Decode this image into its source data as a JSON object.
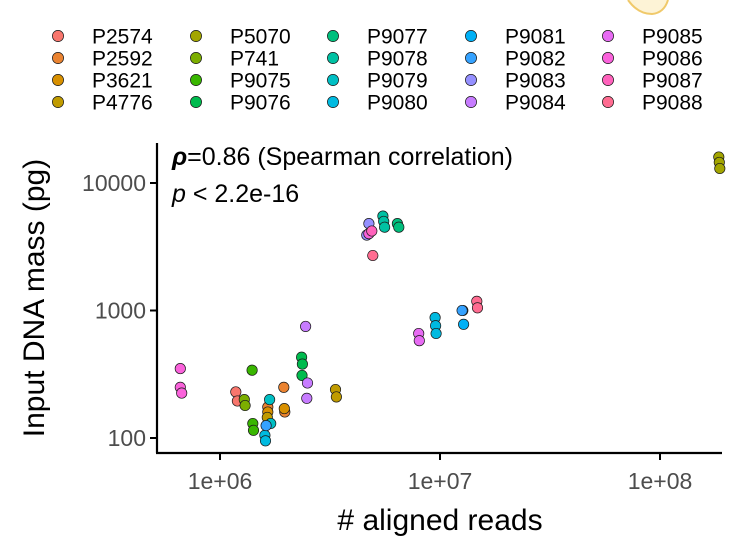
{
  "chart_data": {
    "type": "scatter",
    "xlabel": "# aligned reads",
    "ylabel": "Input DNA mass (pg)",
    "x_scale": "log10",
    "y_scale": "log10",
    "xlim": [
      500000,
      230000000
    ],
    "ylim": [
      85,
      20000
    ],
    "x_ticks": [
      {
        "value": 1000000,
        "label": "1e+06"
      },
      {
        "value": 10000000,
        "label": "1e+07"
      },
      {
        "value": 100000000,
        "label": "1e+08"
      }
    ],
    "y_ticks": [
      {
        "value": 100,
        "label": "100"
      },
      {
        "value": 1000,
        "label": "1000"
      },
      {
        "value": 10000,
        "label": "10000"
      }
    ],
    "annotations": {
      "rho_symbol": "ρ",
      "rho_text": "=0.86 (Spearman correlation)",
      "p_symbol": "p",
      "p_text": " < 2.2e-16"
    },
    "grid": false,
    "legend_position": "top",
    "series": [
      {
        "name": "P2574",
        "color": "#F8766D",
        "points": [
          [
            1180000,
            230
          ],
          [
            1200000,
            195
          ]
        ]
      },
      {
        "name": "P2592",
        "color": "#EA8331",
        "points": [
          [
            1650000,
            175
          ],
          [
            1950000,
            250
          ],
          [
            1970000,
            160
          ]
        ]
      },
      {
        "name": "P3621",
        "color": "#D89000",
        "points": [
          [
            1650000,
            160
          ],
          [
            1960000,
            170
          ]
        ]
      },
      {
        "name": "P4776",
        "color": "#C09B00",
        "points": [
          [
            1640000,
            145
          ],
          [
            3350000,
            240
          ],
          [
            3380000,
            210
          ]
        ]
      },
      {
        "name": "P5070",
        "color": "#A3A500",
        "points": [
          [
            185000000,
            16000
          ],
          [
            186000000,
            14500
          ],
          [
            187000000,
            13000
          ]
        ]
      },
      {
        "name": "P741",
        "color": "#7CAE00",
        "points": [
          [
            1290000,
            200
          ],
          [
            1300000,
            180
          ]
        ]
      },
      {
        "name": "P9075",
        "color": "#39B600",
        "points": [
          [
            1400000,
            340
          ],
          [
            1410000,
            130
          ],
          [
            1420000,
            115
          ]
        ]
      },
      {
        "name": "P9076",
        "color": "#00BB4E",
        "points": [
          [
            2350000,
            430
          ],
          [
            2370000,
            380
          ],
          [
            2360000,
            310
          ]
        ]
      },
      {
        "name": "P9077",
        "color": "#00BF7D",
        "points": [
          [
            6400000,
            4800
          ],
          [
            6500000,
            4500
          ]
        ]
      },
      {
        "name": "P9078",
        "color": "#00C1A3",
        "points": [
          [
            5500000,
            5500
          ],
          [
            5550000,
            5000
          ],
          [
            5600000,
            4500
          ]
        ]
      },
      {
        "name": "P9079",
        "color": "#00BFC4",
        "points": [
          [
            1680000,
            200
          ],
          [
            1700000,
            130
          ]
        ]
      },
      {
        "name": "P9080",
        "color": "#00BAE0",
        "points": [
          [
            1600000,
            105
          ],
          [
            1610000,
            95
          ],
          [
            9500000,
            880
          ],
          [
            9550000,
            760
          ],
          [
            9600000,
            660
          ]
        ]
      },
      {
        "name": "P9081",
        "color": "#00B0F6",
        "points": [
          [
            12700000,
            1000
          ],
          [
            12800000,
            780
          ]
        ]
      },
      {
        "name": "P9082",
        "color": "#35A2FF",
        "points": [
          [
            1620000,
            125
          ],
          [
            12600000,
            1000
          ]
        ]
      },
      {
        "name": "P9083",
        "color": "#9590FF",
        "points": [
          [
            4750000,
            4800
          ],
          [
            4650000,
            3900
          ]
        ]
      },
      {
        "name": "P9084",
        "color": "#C77CFF",
        "points": [
          [
            2450000,
            750
          ],
          [
            2500000,
            270
          ],
          [
            2480000,
            205
          ]
        ]
      },
      {
        "name": "P9085",
        "color": "#E76BF3",
        "points": [
          [
            8000000,
            660
          ],
          [
            8050000,
            580
          ]
        ]
      },
      {
        "name": "P9086",
        "color": "#FA62DB",
        "points": [
          [
            660000,
            350
          ],
          [
            660000,
            250
          ],
          [
            670000,
            225
          ],
          [
            4750000,
            4000
          ]
        ]
      },
      {
        "name": "P9087",
        "color": "#FF62BC",
        "points": [
          [
            4900000,
            4200
          ]
        ]
      },
      {
        "name": "P9088",
        "color": "#FF6C91",
        "points": [
          [
            14700000,
            1180
          ],
          [
            14800000,
            1050
          ],
          [
            4950000,
            2700
          ]
        ]
      }
    ]
  },
  "legend_columns": [
    [
      "P2574",
      "P2592",
      "P3621",
      "P4776"
    ],
    [
      "P5070",
      "P741",
      "P9075",
      "P9076"
    ],
    [
      "P9077",
      "P9078",
      "P9079",
      "P9080"
    ],
    [
      "P9081",
      "P9082",
      "P9083",
      "P9084"
    ],
    [
      "P9085",
      "P9086",
      "P9087",
      "P9088"
    ]
  ],
  "colors": {
    "axis": "#000000",
    "tick_label": "#4d4d4d",
    "point_stroke": "#1a1a1a",
    "partial_icon": "#f3d48a"
  }
}
